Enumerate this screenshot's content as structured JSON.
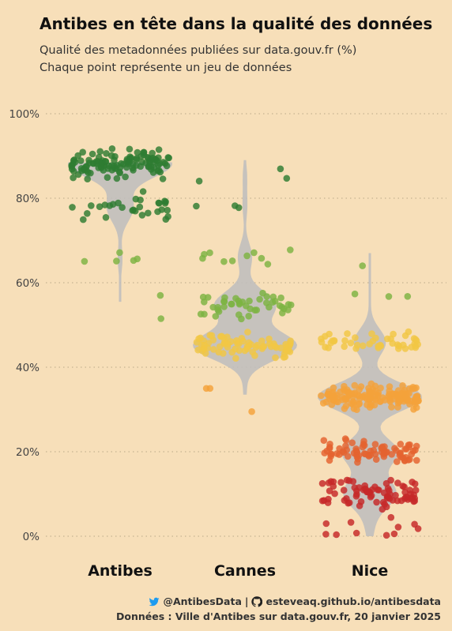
{
  "header": {
    "title": "Antibes en tête dans la qualité des données",
    "subtitle_line1": "Qualité des metadonnées publiées sur data.gouv.fr (%)",
    "subtitle_line2": "Chaque point représente un jeu de données"
  },
  "caption": {
    "twitter_handle": "@AntibesData",
    "separator": "|",
    "github_url": "esteveaq.github.io/antibesdata",
    "source": "Données : Ville d'Antibes sur data.gouv.fr, 20 janvier 2025",
    "twitter_icon": "twitter-icon",
    "github_icon": "github-icon"
  },
  "colors": {
    "background": "#f7dfb9",
    "violin": "#bdbdbd",
    "high": "#2e7d32",
    "mid_high": "#7cb342",
    "mid": "#f2c744",
    "mid_low": "#f4a23a",
    "low": "#e4632f",
    "very_low": "#c62828"
  },
  "chart_data": {
    "type": "scatter",
    "subtype": "beeswarm-violin",
    "ylim": [
      0,
      100
    ],
    "y_ticks": [
      "0%",
      "20%",
      "40%",
      "60%",
      "80%",
      "100%"
    ],
    "y_tick_values": [
      0,
      20,
      40,
      60,
      80,
      100
    ],
    "grid": true,
    "categories": [
      "Antibes",
      "Cannes",
      "Nice"
    ],
    "series": [
      {
        "name": "Antibes",
        "violin_range": [
          55.5,
          88.5
        ],
        "point_clusters": [
          {
            "center": 88,
            "spread": 5,
            "count": 120
          },
          {
            "center": 78,
            "spread": 4,
            "count": 30
          },
          {
            "center": 66,
            "spread": 3,
            "count": 5
          },
          {
            "center": 57,
            "spread": 0,
            "count": 1
          },
          {
            "center": 51.5,
            "spread": 0,
            "count": 1
          }
        ]
      },
      {
        "name": "Cannes",
        "violin_range": [
          33.5,
          89
        ],
        "point_clusters": [
          {
            "center": 86,
            "spread": 5,
            "count": 3
          },
          {
            "center": 78,
            "spread": 2,
            "count": 3
          },
          {
            "center": 66,
            "spread": 3,
            "count": 10
          },
          {
            "center": 55,
            "spread": 4,
            "count": 45
          },
          {
            "center": 45,
            "spread": 4,
            "count": 75
          },
          {
            "center": 35,
            "spread": 0,
            "count": 2
          },
          {
            "center": 29.5,
            "spread": 0,
            "count": 1
          }
        ]
      },
      {
        "name": "Nice",
        "violin_range": [
          0,
          67
        ],
        "point_clusters": [
          {
            "center": 64,
            "spread": 0,
            "count": 1
          },
          {
            "center": 57,
            "spread": 1,
            "count": 3
          },
          {
            "center": 46,
            "spread": 3,
            "count": 45
          },
          {
            "center": 33,
            "spread": 4,
            "count": 150
          },
          {
            "center": 20,
            "spread": 4,
            "count": 80
          },
          {
            "center": 10,
            "spread": 5,
            "count": 80
          },
          {
            "center": 3,
            "spread": 2,
            "count": 6
          },
          {
            "center": 0.5,
            "spread": 0.5,
            "count": 5
          }
        ]
      }
    ]
  }
}
